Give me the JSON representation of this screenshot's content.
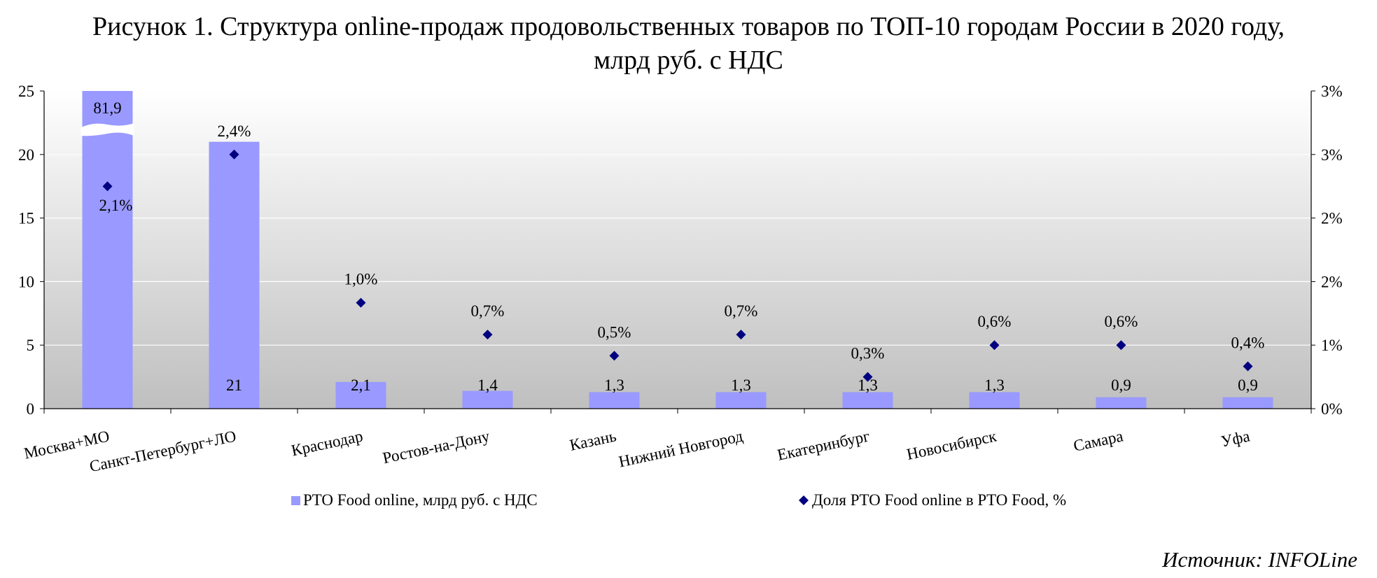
{
  "title_line1": "Рисунок 1. Структура online-продаж продовольственных товаров по ТОП-10 городам России в 2020 году,",
  "title_line2": "млрд руб. с НДС",
  "source": "Источник: INFOLine",
  "colors": {
    "bar": "#9999ff",
    "marker": "#000080"
  },
  "chart_data": {
    "type": "bar",
    "categories": [
      "Москва+МО",
      "Санкт-Петербург+ЛО",
      "Краснодар",
      "Ростов-на-Дону",
      "Казань",
      "Нижний Новгород",
      "Екатеринбург",
      "Новосибирск",
      "Самара",
      "Уфа"
    ],
    "series": [
      {
        "name": "PTO Food online, млрд руб. с НДС",
        "type": "bar",
        "axis": "left",
        "values": [
          81.9,
          21,
          2.1,
          1.4,
          1.3,
          1.3,
          1.3,
          1.3,
          0.9,
          0.9
        ],
        "labels": [
          "81,9",
          "21",
          "2,1",
          "1,4",
          "1,3",
          "1,3",
          "1,3",
          "1,3",
          "0,9",
          "0,9"
        ]
      },
      {
        "name": "Доля PTO Food online в PTO Food, %",
        "type": "scatter",
        "axis": "right",
        "values": [
          2.1,
          2.4,
          1.0,
          0.7,
          0.5,
          0.7,
          0.3,
          0.6,
          0.6,
          0.4
        ],
        "labels": [
          "2,1%",
          "2,4%",
          "1,0%",
          "0,7%",
          "0,5%",
          "0,7%",
          "0,3%",
          "0,6%",
          "0,6%",
          "0,4%"
        ]
      }
    ],
    "y_axis_left": {
      "range": [
        0,
        25
      ],
      "ticks": [
        "0",
        "5",
        "10",
        "15",
        "20",
        "25"
      ]
    },
    "y_axis_right": {
      "range": [
        0,
        3
      ],
      "ticks": [
        "0%",
        "1%",
        "2%",
        "2%",
        "3%",
        "3%"
      ]
    },
    "axis_break": "Москва+МО bar truncated above 25",
    "grid": true,
    "legend": "bottom"
  }
}
